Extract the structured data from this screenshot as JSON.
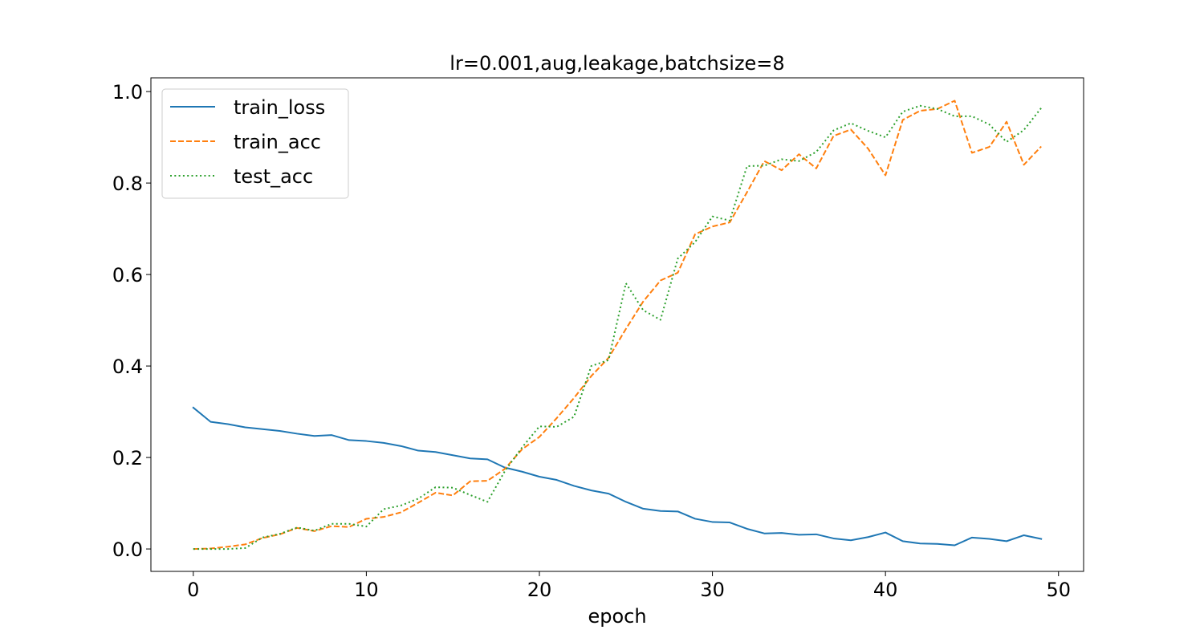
{
  "chart_data": {
    "type": "line",
    "title": "lr=0.001,aug,leakage,batchsize=8",
    "xlabel": "epoch",
    "ylabel": "",
    "xlim": [
      -2.45,
      51.45
    ],
    "ylim": [
      -0.049,
      1.03
    ],
    "xticks": [
      0,
      10,
      20,
      30,
      40,
      50
    ],
    "yticks": [
      0.0,
      0.2,
      0.4,
      0.6,
      0.8,
      1.0
    ],
    "xtick_labels": [
      "0",
      "10",
      "20",
      "30",
      "40",
      "50"
    ],
    "ytick_labels": [
      "0.0",
      "0.2",
      "0.4",
      "0.6",
      "0.8",
      "1.0"
    ],
    "grid": false,
    "legend_position": "upper left",
    "x": [
      0,
      1,
      2,
      3,
      4,
      5,
      6,
      7,
      8,
      9,
      10,
      11,
      12,
      13,
      14,
      15,
      16,
      17,
      18,
      19,
      20,
      21,
      22,
      23,
      24,
      25,
      26,
      27,
      28,
      29,
      30,
      31,
      32,
      33,
      34,
      35,
      36,
      37,
      38,
      39,
      40,
      41,
      42,
      43,
      44,
      45,
      46,
      47,
      48,
      49
    ],
    "series": [
      {
        "name": "train_loss",
        "color": "#1f77b4",
        "style": "solid",
        "values": [
          0.309,
          0.278,
          0.273,
          0.266,
          0.262,
          0.258,
          0.252,
          0.247,
          0.249,
          0.238,
          0.236,
          0.232,
          0.225,
          0.215,
          0.212,
          0.205,
          0.198,
          0.196,
          0.178,
          0.169,
          0.158,
          0.151,
          0.138,
          0.128,
          0.121,
          0.103,
          0.088,
          0.083,
          0.082,
          0.066,
          0.059,
          0.058,
          0.044,
          0.034,
          0.035,
          0.031,
          0.032,
          0.023,
          0.019,
          0.026,
          0.036,
          0.017,
          0.012,
          0.011,
          0.008,
          0.025,
          0.022,
          0.017,
          0.03,
          0.022
        ]
      },
      {
        "name": "train_acc",
        "color": "#ff7f0e",
        "style": "dashed",
        "values": [
          0.0,
          0.001,
          0.005,
          0.01,
          0.024,
          0.032,
          0.046,
          0.039,
          0.05,
          0.048,
          0.066,
          0.07,
          0.08,
          0.101,
          0.123,
          0.117,
          0.148,
          0.149,
          0.175,
          0.218,
          0.245,
          0.286,
          0.33,
          0.378,
          0.418,
          0.481,
          0.541,
          0.587,
          0.604,
          0.688,
          0.705,
          0.714,
          0.78,
          0.848,
          0.828,
          0.863,
          0.832,
          0.903,
          0.917,
          0.875,
          0.817,
          0.938,
          0.958,
          0.962,
          0.98,
          0.866,
          0.879,
          0.934,
          0.84,
          0.88
        ]
      },
      {
        "name": "test_acc",
        "color": "#2ca02c",
        "style": "dotted",
        "values": [
          0.0,
          0.0,
          0.0,
          0.002,
          0.025,
          0.033,
          0.047,
          0.04,
          0.055,
          0.055,
          0.049,
          0.087,
          0.095,
          0.11,
          0.135,
          0.134,
          0.118,
          0.103,
          0.17,
          0.222,
          0.268,
          0.267,
          0.289,
          0.4,
          0.413,
          0.581,
          0.522,
          0.501,
          0.635,
          0.671,
          0.727,
          0.718,
          0.837,
          0.838,
          0.852,
          0.848,
          0.868,
          0.915,
          0.931,
          0.914,
          0.9,
          0.956,
          0.969,
          0.962,
          0.946,
          0.946,
          0.928,
          0.89,
          0.916,
          0.964
        ]
      }
    ]
  }
}
